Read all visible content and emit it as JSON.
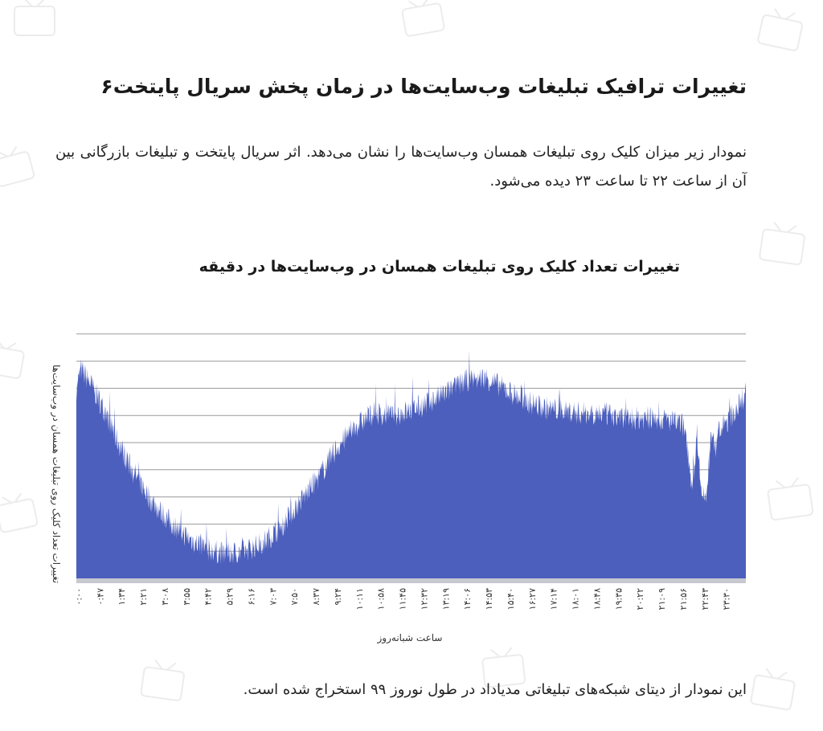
{
  "title": "تغییرات ترافیک تبلیغات وب‌سایت‌ها در زمان پخش سریال پایتخت۶",
  "description": "نمودار زیر میزان کلیک روی تبلیغات همسان وب‌سایت‌ها را نشان می‌دهد. اثر سریال پایتخت و تبلیغات بازرگانی بین آن از ساعت ۲۲ تا ساعت ۲۳ دیده می‌شود.",
  "footer": "این نمودار از دیتای شبکه‌های تبلیغاتی مدیاداد در طول نوروز ۹۹ استخراج شده است.",
  "chart_data": {
    "type": "area",
    "title": "تغییرات تعداد کلیک روی تبلیغات همسان در  وب‌سایت‌ها در دقیقه",
    "xlabel": "ساعت شبانه‌روز",
    "ylabel": "تغییرات تعداد کلیک روی تبلیغات همسان در وب‌سایت‌ها",
    "x_ticks": [
      "۰:۰۰",
      "۰:۴۷",
      "۱:۳۴",
      "۲:۲۱",
      "۳:۰۸",
      "۳:۵۵",
      "۴:۴۲",
      "۵:۲۹",
      "۶:۱۶",
      "۷:۰۳",
      "۷:۵۰",
      "۸:۳۷",
      "۹:۲۴",
      "۱۰:۱۱",
      "۱۰:۵۸",
      "۱۱:۴۵",
      "۱۲:۳۲",
      "۱۳:۱۹",
      "۱۴:۰۶",
      "۱۴:۵۳",
      "۱۵:۴۰",
      "۱۶:۲۷",
      "۱۷:۱۴",
      "۱۸:۰۱",
      "۱۸:۴۸",
      "۱۹:۳۵",
      "۲۰:۲۲",
      "۲۱:۰۹",
      "۲۱:۵۶",
      "۲۲:۴۳",
      "۲۳:۳۰"
    ],
    "x_unit": "minutes of day",
    "xlim": [
      0,
      1440
    ],
    "ylim": [
      0,
      100
    ],
    "y_gridlines": [
      0,
      10,
      20,
      30,
      40,
      50,
      60,
      70,
      80,
      90
    ],
    "y_tick_labels_visible": false,
    "grid": true,
    "legend": "none",
    "color": "#4c5fbd",
    "series_profile_x": [
      0,
      10,
      30,
      60,
      90,
      120,
      160,
      200,
      240,
      280,
      320,
      360,
      400,
      440,
      480,
      520,
      560,
      600,
      640,
      680,
      720,
      760,
      800,
      840,
      880,
      920,
      960,
      1000,
      1040,
      1080,
      1120,
      1160,
      1200,
      1240,
      1280,
      1310,
      1325,
      1335,
      1345,
      1355,
      1365,
      1375,
      1382,
      1400,
      1420,
      1440
    ],
    "series_profile_y": [
      70,
      77,
      72,
      62,
      50,
      40,
      29,
      21,
      15,
      11,
      9,
      10,
      13,
      19,
      28,
      37,
      48,
      56,
      61,
      60,
      62,
      65,
      69,
      73,
      74,
      70,
      66,
      63,
      62,
      61,
      61,
      60,
      59,
      59,
      58,
      56,
      32,
      54,
      30,
      30,
      52,
      48,
      54,
      58,
      62,
      68
    ]
  }
}
